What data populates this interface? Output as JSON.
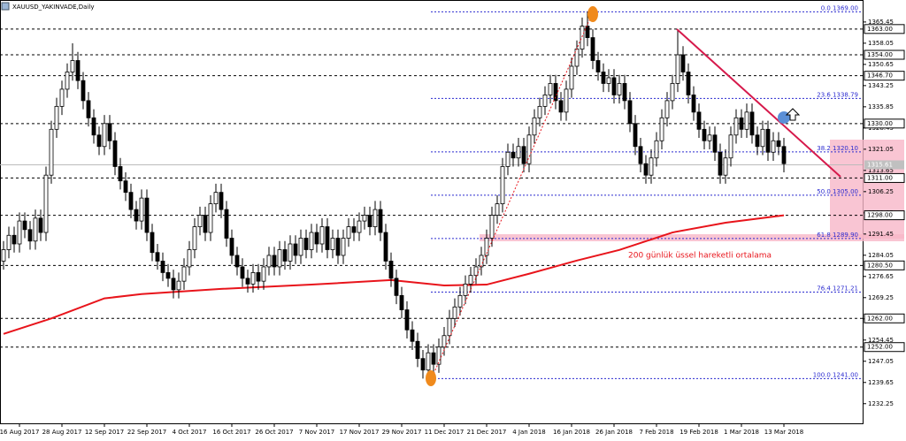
{
  "chart_data": {
    "type": "candlestick",
    "title": "XAUUSD_YAKINVADE,Daily",
    "categories": [
      null,
      null,
      null,
      "16 Aug 2017",
      null,
      null,
      null,
      null,
      null,
      null,
      null,
      "28 Aug 2017",
      null,
      null,
      null,
      null,
      null,
      null,
      null,
      "12 Sep 2017",
      null,
      null,
      null,
      null,
      null,
      null,
      null,
      "22 Sep 2017",
      null,
      null,
      null,
      null,
      null,
      null,
      null,
      "4 Oct 2017",
      null,
      null,
      null,
      null,
      null,
      null,
      null,
      "16 Oct 2017",
      null,
      null,
      null,
      null,
      null,
      null,
      null,
      "26 Oct 2017",
      null,
      null,
      null,
      null,
      null,
      null,
      null,
      "7 Nov 2017",
      null,
      null,
      null,
      null,
      null,
      null,
      null,
      "17 Nov 2017",
      null,
      null,
      null,
      null,
      null,
      null,
      null,
      "29 Nov 2017",
      null,
      null,
      null,
      null,
      null,
      null,
      null,
      "11 Dec 2017",
      null,
      null,
      null,
      null,
      null,
      null,
      null,
      "21 Dec 2017",
      null,
      null,
      null,
      null,
      null,
      null,
      null,
      "4 Jan 2018",
      null,
      null,
      null,
      null,
      null,
      null,
      null,
      "16 Jan 2018",
      null,
      null,
      null,
      null,
      null,
      null,
      null,
      "26 Jan 2018",
      null,
      null,
      null,
      null,
      null,
      null,
      null,
      "7 Feb 2018",
      null,
      null,
      null,
      null,
      null,
      null,
      null,
      "19 Feb 2018",
      null,
      null,
      null,
      null,
      null,
      null,
      null,
      "1 Mar 2018",
      null,
      null,
      null,
      null,
      null,
      null,
      null,
      "13 Mar 2018"
    ],
    "ohlc": [
      [
        1282,
        1289,
        1279,
        1286
      ],
      [
        1286,
        1294,
        1283,
        1291
      ],
      [
        1291,
        1294,
        1285,
        1288
      ],
      [
        1288,
        1299,
        1285,
        1296
      ],
      [
        1296,
        1299,
        1290,
        1293
      ],
      [
        1293,
        1296,
        1286,
        1289
      ],
      [
        1289,
        1300,
        1286,
        1297
      ],
      [
        1297,
        1300,
        1289,
        1292
      ],
      [
        1292,
        1315,
        1289,
        1312
      ],
      [
        1312,
        1331,
        1309,
        1328
      ],
      [
        1328,
        1339,
        1325,
        1336
      ],
      [
        1336,
        1345,
        1333,
        1342
      ],
      [
        1342,
        1351,
        1339,
        1348
      ],
      [
        1348,
        1358,
        1345,
        1352
      ],
      [
        1352,
        1355,
        1342,
        1345
      ],
      [
        1345,
        1348,
        1335,
        1338
      ],
      [
        1338,
        1341,
        1329,
        1332
      ],
      [
        1332,
        1335,
        1323,
        1326
      ],
      [
        1326,
        1329,
        1319,
        1322
      ],
      [
        1322,
        1333,
        1319,
        1330
      ],
      [
        1330,
        1333,
        1321,
        1324
      ],
      [
        1324,
        1327,
        1312,
        1315
      ],
      [
        1315,
        1318,
        1307,
        1310
      ],
      [
        1310,
        1313,
        1303,
        1306
      ],
      [
        1306,
        1309,
        1297,
        1300
      ],
      [
        1300,
        1303,
        1293,
        1296
      ],
      [
        1296,
        1307,
        1293,
        1304
      ],
      [
        1304,
        1307,
        1289,
        1292
      ],
      [
        1292,
        1295,
        1282,
        1285
      ],
      [
        1285,
        1288,
        1279,
        1282
      ],
      [
        1282,
        1285,
        1275,
        1278
      ],
      [
        1278,
        1281,
        1273,
        1276
      ],
      [
        1276,
        1279,
        1269,
        1272
      ],
      [
        1272,
        1278,
        1269,
        1275
      ],
      [
        1275,
        1283,
        1272,
        1280
      ],
      [
        1280,
        1289,
        1277,
        1286
      ],
      [
        1286,
        1297,
        1283,
        1294
      ],
      [
        1294,
        1301,
        1291,
        1298
      ],
      [
        1298,
        1301,
        1289,
        1292
      ],
      [
        1292,
        1305,
        1289,
        1302
      ],
      [
        1302,
        1309,
        1299,
        1306
      ],
      [
        1306,
        1309,
        1297,
        1300
      ],
      [
        1300,
        1303,
        1287,
        1290
      ],
      [
        1290,
        1293,
        1281,
        1284
      ],
      [
        1284,
        1287,
        1277,
        1280
      ],
      [
        1280,
        1283,
        1273,
        1276
      ],
      [
        1276,
        1279,
        1271,
        1274
      ],
      [
        1274,
        1281,
        1271,
        1278
      ],
      [
        1278,
        1281,
        1272,
        1275
      ],
      [
        1275,
        1283,
        1272,
        1280
      ],
      [
        1280,
        1287,
        1277,
        1284
      ],
      [
        1284,
        1287,
        1277,
        1280
      ],
      [
        1280,
        1289,
        1277,
        1286
      ],
      [
        1286,
        1289,
        1279,
        1282
      ],
      [
        1282,
        1291,
        1279,
        1288
      ],
      [
        1288,
        1291,
        1281,
        1284
      ],
      [
        1284,
        1293,
        1281,
        1290
      ],
      [
        1290,
        1293,
        1283,
        1286
      ],
      [
        1286,
        1295,
        1283,
        1292
      ],
      [
        1292,
        1295,
        1285,
        1288
      ],
      [
        1288,
        1297,
        1285,
        1294
      ],
      [
        1294,
        1297,
        1283,
        1286
      ],
      [
        1286,
        1293,
        1283,
        1290
      ],
      [
        1290,
        1293,
        1281,
        1284
      ],
      [
        1284,
        1293,
        1281,
        1290
      ],
      [
        1290,
        1297,
        1287,
        1294
      ],
      [
        1294,
        1297,
        1289,
        1292
      ],
      [
        1292,
        1299,
        1289,
        1296
      ],
      [
        1296,
        1301,
        1293,
        1298
      ],
      [
        1298,
        1301,
        1291,
        1294
      ],
      [
        1294,
        1303,
        1291,
        1300
      ],
      [
        1300,
        1303,
        1289,
        1292
      ],
      [
        1292,
        1295,
        1279,
        1282
      ],
      [
        1282,
        1285,
        1273,
        1276
      ],
      [
        1276,
        1279,
        1267,
        1270
      ],
      [
        1270,
        1273,
        1262,
        1265
      ],
      [
        1265,
        1268,
        1255,
        1258
      ],
      [
        1258,
        1261,
        1251,
        1254
      ],
      [
        1254,
        1257,
        1245,
        1248
      ],
      [
        1248,
        1251,
        1241,
        1244
      ],
      [
        1244,
        1253,
        1241,
        1250
      ],
      [
        1250,
        1253,
        1243,
        1246
      ],
      [
        1246,
        1255,
        1243,
        1252
      ],
      [
        1252,
        1259,
        1249,
        1256
      ],
      [
        1256,
        1265,
        1253,
        1262
      ],
      [
        1262,
        1269,
        1259,
        1266
      ],
      [
        1266,
        1273,
        1263,
        1270
      ],
      [
        1270,
        1277,
        1267,
        1274
      ],
      [
        1274,
        1280,
        1271,
        1277
      ],
      [
        1277,
        1283,
        1274,
        1280
      ],
      [
        1280,
        1287,
        1277,
        1284
      ],
      [
        1284,
        1293,
        1281,
        1290
      ],
      [
        1290,
        1301,
        1287,
        1298
      ],
      [
        1298,
        1305,
        1295,
        1302
      ],
      [
        1302,
        1318,
        1299,
        1315
      ],
      [
        1315,
        1323,
        1312,
        1320
      ],
      [
        1320,
        1323,
        1315,
        1318
      ],
      [
        1318,
        1325,
        1315,
        1322
      ],
      [
        1322,
        1325,
        1313,
        1316
      ],
      [
        1316,
        1329,
        1313,
        1326
      ],
      [
        1326,
        1335,
        1323,
        1332
      ],
      [
        1332,
        1339,
        1329,
        1336
      ],
      [
        1336,
        1343,
        1333,
        1340
      ],
      [
        1340,
        1347,
        1337,
        1344
      ],
      [
        1344,
        1347,
        1335,
        1338
      ],
      [
        1338,
        1341,
        1331,
        1334
      ],
      [
        1334,
        1345,
        1331,
        1342
      ],
      [
        1342,
        1353,
        1339,
        1350
      ],
      [
        1350,
        1359,
        1347,
        1356
      ],
      [
        1356,
        1367,
        1353,
        1364
      ],
      [
        1364,
        1369,
        1357,
        1360
      ],
      [
        1360,
        1363,
        1349,
        1352
      ],
      [
        1352,
        1355,
        1345,
        1348
      ],
      [
        1348,
        1351,
        1341,
        1344
      ],
      [
        1344,
        1349,
        1341,
        1346
      ],
      [
        1346,
        1349,
        1337,
        1340
      ],
      [
        1340,
        1347,
        1337,
        1344
      ],
      [
        1344,
        1347,
        1335,
        1338
      ],
      [
        1338,
        1341,
        1327,
        1330
      ],
      [
        1330,
        1333,
        1319,
        1322
      ],
      [
        1322,
        1325,
        1313,
        1316
      ],
      [
        1316,
        1319,
        1309,
        1312
      ],
      [
        1312,
        1321,
        1309,
        1318
      ],
      [
        1318,
        1327,
        1315,
        1324
      ],
      [
        1324,
        1335,
        1321,
        1332
      ],
      [
        1332,
        1341,
        1329,
        1338
      ],
      [
        1338,
        1347,
        1335,
        1344
      ],
      [
        1344,
        1363,
        1341,
        1354
      ],
      [
        1354,
        1357,
        1345,
        1348
      ],
      [
        1348,
        1351,
        1337,
        1340
      ],
      [
        1340,
        1343,
        1331,
        1334
      ],
      [
        1334,
        1337,
        1325,
        1328
      ],
      [
        1328,
        1331,
        1321,
        1324
      ],
      [
        1324,
        1329,
        1321,
        1326
      ],
      [
        1326,
        1329,
        1317,
        1320
      ],
      [
        1320,
        1323,
        1309,
        1312
      ],
      [
        1312,
        1321,
        1309,
        1318
      ],
      [
        1318,
        1329,
        1315,
        1326
      ],
      [
        1326,
        1335,
        1323,
        1332
      ],
      [
        1332,
        1335,
        1325,
        1328
      ],
      [
        1328,
        1337,
        1325,
        1334
      ],
      [
        1334,
        1337,
        1323,
        1326
      ],
      [
        1326,
        1329,
        1319,
        1322
      ],
      [
        1322,
        1331,
        1319,
        1328
      ],
      [
        1328,
        1331,
        1317,
        1320
      ],
      [
        1320,
        1327,
        1317,
        1324
      ],
      [
        1324,
        1327,
        1319,
        1322
      ],
      [
        1322,
        1325,
        1313,
        1316
      ]
    ],
    "ema": {
      "name": "200 günlük üssel hareketli ortalama",
      "color": "#e8141b",
      "x": [
        0,
        9,
        19,
        26,
        41,
        58,
        73,
        83,
        91,
        99,
        108,
        116,
        126,
        136,
        147
      ],
      "values": [
        1256.6,
        1262,
        1269,
        1270.5,
        1272.3,
        1273.8,
        1275.4,
        1273.5,
        1273.8,
        1277.6,
        1282.2,
        1285.9,
        1292,
        1295.4,
        1298
      ]
    },
    "ylim": [
      1225.7,
      1372.2
    ],
    "yticks": [
      1365.45,
      1358.05,
      1350.65,
      1343.25,
      1335.85,
      1328.45,
      1321.05,
      1313.65,
      1306.25,
      1298.85,
      1291.45,
      1284.05,
      1276.65,
      1269.25,
      1261.85,
      1254.45,
      1247.05,
      1239.65,
      1232.25
    ],
    "levels": [
      {
        "value": 1363,
        "label": "1363.00"
      },
      {
        "value": 1354,
        "label": "1354.00"
      },
      {
        "value": 1346.7,
        "label": "1346.70"
      },
      {
        "value": 1330,
        "label": "1330.00"
      },
      {
        "value": 1311,
        "label": "1311.00"
      },
      {
        "value": 1298,
        "label": "1298.00"
      },
      {
        "value": 1280.5,
        "label": "1280.50"
      },
      {
        "value": 1262,
        "label": "1262.00"
      },
      {
        "value": 1252,
        "label": "1252.00"
      }
    ],
    "fibonacci": [
      {
        "value": 1369,
        "label": "0.0 1369.00"
      },
      {
        "value": 1338.79,
        "label": "23.6 1338.79"
      },
      {
        "value": 1320.1,
        "label": "38.2 1320.10"
      },
      {
        "value": 1305,
        "label": "50.0 1305.00"
      },
      {
        "value": 1289.9,
        "label": "61.8 1289.90"
      },
      {
        "value": 1271.21,
        "label": "76.4 1271.21"
      },
      {
        "value": 1241,
        "label": "100.0 1241.00"
      }
    ],
    "current_price": 1315.61
  }
}
